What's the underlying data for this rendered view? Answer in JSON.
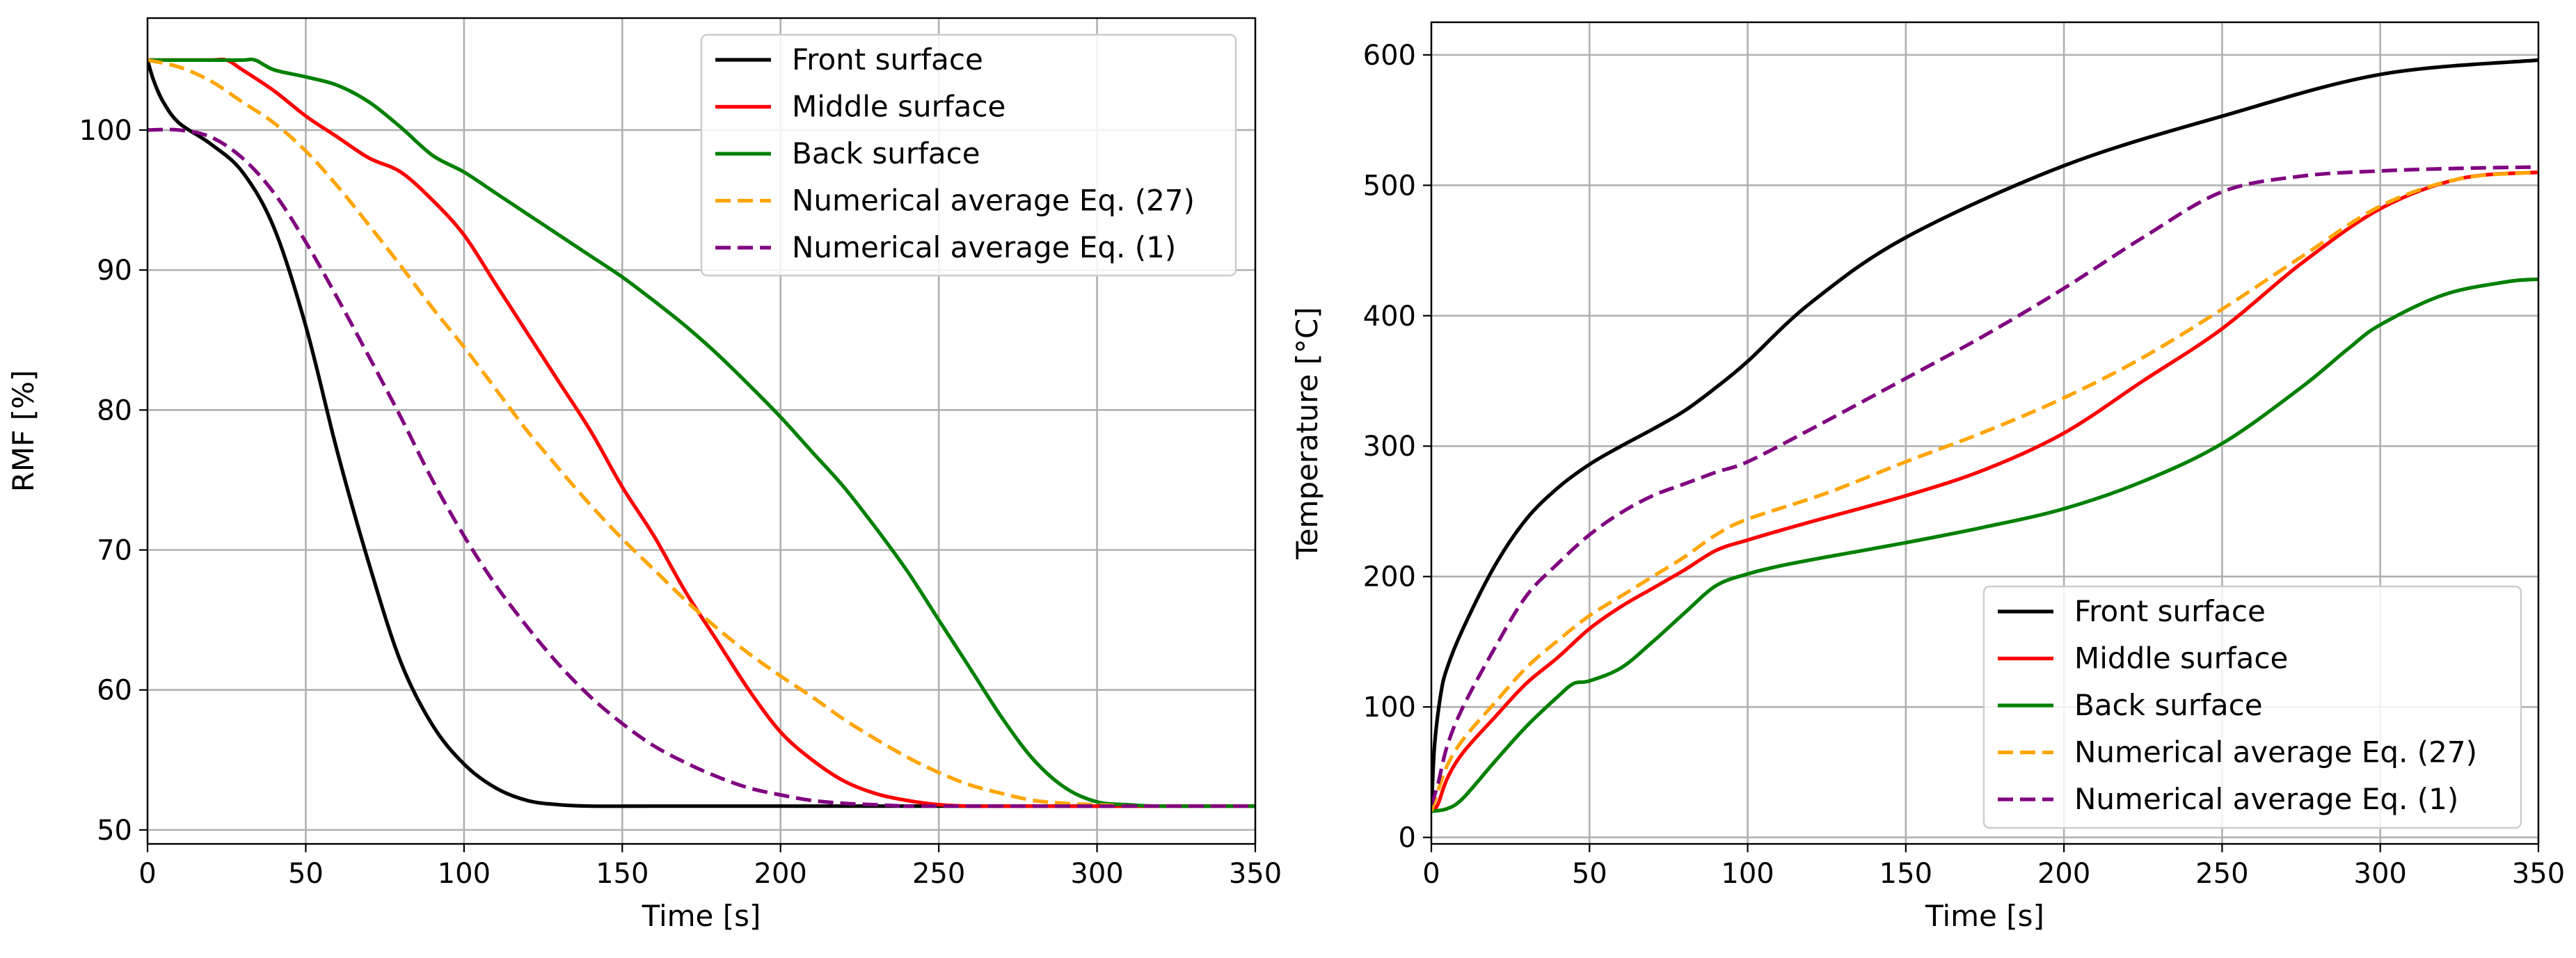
{
  "chart_data": [
    {
      "type": "line",
      "title": "",
      "xlabel": "Time [s]",
      "ylabel": "RMF [%]",
      "xlim": [
        0,
        350
      ],
      "ylim": [
        49,
        108
      ],
      "xticks": [
        0,
        50,
        100,
        150,
        200,
        250,
        300,
        350
      ],
      "yticks": [
        50,
        60,
        70,
        80,
        90,
        100
      ],
      "grid": true,
      "legend_position": "top-right",
      "series": [
        {
          "name": "Front surface",
          "color": "#000000",
          "dashed": false,
          "x": [
            0,
            2,
            5,
            10,
            20,
            30,
            40,
            50,
            60,
            70,
            80,
            90,
            100,
            110,
            120,
            130,
            140,
            160,
            200,
            250,
            300,
            350
          ],
          "y": [
            105,
            103.5,
            102,
            100.5,
            99,
            97,
            93,
            86,
            77,
            69,
            62,
            57.5,
            54.7,
            53,
            52.1,
            51.8,
            51.7,
            51.7,
            51.7,
            51.7,
            51.7,
            51.7
          ]
        },
        {
          "name": "Middle surface",
          "color": "#ff0000",
          "dashed": false,
          "x": [
            0,
            10,
            20,
            25,
            30,
            40,
            50,
            60,
            70,
            80,
            90,
            100,
            110,
            120,
            130,
            140,
            150,
            160,
            170,
            180,
            190,
            200,
            210,
            220,
            230,
            240,
            250,
            260,
            270,
            300,
            350
          ],
          "y": [
            105,
            105,
            105,
            105,
            104.3,
            102.8,
            101,
            99.5,
            98,
            97,
            95,
            92.5,
            89,
            85.5,
            82,
            78.5,
            74.5,
            71,
            67,
            63.5,
            60,
            57,
            55,
            53.5,
            52.6,
            52.1,
            51.8,
            51.7,
            51.7,
            51.7,
            51.7
          ]
        },
        {
          "name": "Back surface",
          "color": "#008000",
          "dashed": false,
          "x": [
            0,
            10,
            20,
            30,
            34,
            40,
            50,
            60,
            70,
            80,
            90,
            100,
            110,
            120,
            130,
            140,
            150,
            160,
            170,
            180,
            190,
            200,
            210,
            220,
            230,
            240,
            250,
            260,
            270,
            280,
            290,
            300,
            310,
            320,
            350
          ],
          "y": [
            105,
            105,
            105,
            105,
            105,
            104.3,
            103.8,
            103.2,
            102,
            100.2,
            98.2,
            97,
            95.5,
            94,
            92.5,
            91,
            89.5,
            87.8,
            86,
            84,
            81.8,
            79.5,
            77,
            74.5,
            71.6,
            68.5,
            65,
            61.5,
            58,
            55,
            53,
            52,
            51.8,
            51.7,
            51.7
          ]
        },
        {
          "name": "Numerical average Eq. (27)",
          "color": "#ffa500",
          "dashed": true,
          "x": [
            0,
            10,
            20,
            30,
            40,
            50,
            60,
            70,
            80,
            90,
            100,
            110,
            120,
            130,
            140,
            150,
            160,
            170,
            180,
            190,
            200,
            210,
            220,
            230,
            240,
            250,
            260,
            270,
            280,
            290,
            300,
            310,
            320,
            350
          ],
          "y": [
            105,
            104.5,
            103.5,
            102,
            100.5,
            98.5,
            96,
            93.2,
            90.3,
            87.3,
            84.5,
            81.5,
            78.5,
            75.8,
            73.2,
            70.8,
            68.6,
            66.4,
            64.4,
            62.6,
            61,
            59.5,
            57.9,
            56.5,
            55.2,
            54.1,
            53.2,
            52.6,
            52.1,
            51.9,
            51.8,
            51.7,
            51.7,
            51.7
          ]
        },
        {
          "name": "Numerical average Eq. (1)",
          "color": "#800080",
          "dashed": true,
          "x": [
            0,
            10,
            20,
            30,
            40,
            50,
            60,
            70,
            80,
            90,
            100,
            110,
            120,
            130,
            140,
            150,
            160,
            170,
            180,
            190,
            200,
            210,
            220,
            230,
            240,
            250,
            350
          ],
          "y": [
            100,
            100,
            99.5,
            98,
            95.5,
            92,
            88,
            83.8,
            79.5,
            75,
            71,
            67.5,
            64.5,
            61.8,
            59.5,
            57.6,
            56,
            54.8,
            53.8,
            53,
            52.5,
            52.1,
            51.9,
            51.8,
            51.7,
            51.7,
            51.7
          ]
        }
      ]
    },
    {
      "type": "line",
      "title": "",
      "xlabel": "Time [s]",
      "ylabel": "Temperature [°C]",
      "xlim": [
        0,
        350
      ],
      "ylim": [
        -5,
        625
      ],
      "xticks": [
        0,
        50,
        100,
        150,
        200,
        250,
        300,
        350
      ],
      "yticks": [
        0,
        100,
        200,
        300,
        400,
        500,
        600
      ],
      "grid": true,
      "legend_position": "bottom-right",
      "series": [
        {
          "name": "Front surface",
          "color": "#000000",
          "dashed": false,
          "x": [
            0,
            1,
            3,
            5,
            10,
            20,
            30,
            40,
            50,
            60,
            70,
            80,
            90,
            100,
            120,
            150,
            200,
            250,
            300,
            350
          ],
          "y": [
            20,
            70,
            110,
            130,
            160,
            208,
            244,
            268,
            286,
            300,
            313,
            327,
            345,
            365,
            410,
            460,
            515,
            553,
            585,
            596
          ]
        },
        {
          "name": "Middle surface",
          "color": "#ff0000",
          "dashed": false,
          "x": [
            0,
            2,
            5,
            10,
            20,
            30,
            40,
            50,
            60,
            70,
            80,
            90,
            100,
            120,
            150,
            175,
            200,
            225,
            250,
            275,
            300,
            325,
            350
          ],
          "y": [
            20,
            25,
            45,
            65,
            92,
            118,
            138,
            160,
            177,
            191,
            205,
            220,
            228,
            242,
            262,
            282,
            310,
            350,
            390,
            440,
            482,
            505,
            510
          ]
        },
        {
          "name": "Back surface",
          "color": "#008000",
          "dashed": false,
          "x": [
            0,
            5,
            10,
            20,
            30,
            40,
            45,
            50,
            60,
            70,
            80,
            90,
            100,
            110,
            125,
            150,
            175,
            200,
            225,
            250,
            275,
            290,
            300,
            320,
            340,
            350
          ],
          "y": [
            20,
            22,
            30,
            58,
            85,
            108,
            118,
            120,
            130,
            150,
            172,
            193,
            202,
            208,
            215,
            226,
            238,
            252,
            273,
            302,
            345,
            375,
            393,
            416,
            426,
            428
          ]
        },
        {
          "name": "Numerical average Eq. (27)",
          "color": "#ffa500",
          "dashed": true,
          "x": [
            0,
            2,
            5,
            10,
            20,
            30,
            40,
            50,
            60,
            70,
            80,
            90,
            100,
            125,
            150,
            175,
            200,
            225,
            250,
            275,
            300,
            325,
            350
          ],
          "y": [
            20,
            35,
            55,
            75,
            103,
            130,
            151,
            170,
            185,
            200,
            215,
            232,
            244,
            264,
            288,
            311,
            337,
            368,
            405,
            445,
            484,
            505,
            510
          ]
        },
        {
          "name": "Numerical average Eq. (1)",
          "color": "#800080",
          "dashed": true,
          "x": [
            0,
            2,
            5,
            10,
            20,
            30,
            40,
            50,
            60,
            70,
            80,
            90,
            100,
            120,
            150,
            175,
            200,
            225,
            250,
            275,
            300,
            325,
            350
          ],
          "y": [
            25,
            40,
            70,
            100,
            145,
            185,
            210,
            232,
            249,
            262,
            271,
            280,
            288,
            313,
            352,
            385,
            421,
            460,
            495,
            507,
            511,
            513,
            514
          ]
        }
      ]
    }
  ]
}
